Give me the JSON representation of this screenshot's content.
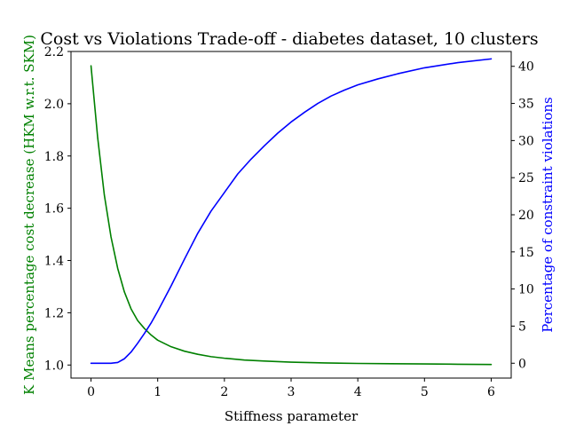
{
  "chart_data": {
    "type": "line",
    "title": "Cost vs Violations Trade-off - diabetes dataset, 10 clusters",
    "xlabel": "Stiffness parameter",
    "ylabel_left": "K Means percentage cost decrease (HKM w.r.t. SKM)",
    "ylabel_right": "Percentage of constraint violations",
    "xlim": [
      -0.3,
      6.3
    ],
    "ylim_left": [
      0.95,
      2.2
    ],
    "ylim_right": [
      -2.0,
      42.0
    ],
    "x_ticks": [
      "0",
      "1",
      "2",
      "3",
      "4",
      "5",
      "6"
    ],
    "y_left_ticks": [
      "1.0",
      "1.2",
      "1.4",
      "1.6",
      "1.8",
      "2.0",
      "2.2"
    ],
    "y_right_ticks": [
      "0",
      "5",
      "10",
      "15",
      "20",
      "25",
      "30",
      "35",
      "40"
    ],
    "grid": false,
    "colors": {
      "left_axis": "#008000",
      "right_axis": "#0000ff"
    },
    "series": [
      {
        "axis": "left",
        "color": "#008000",
        "x": [
          0.0,
          0.1,
          0.2,
          0.3,
          0.4,
          0.5,
          0.6,
          0.7,
          0.8,
          0.9,
          1.0,
          1.2,
          1.4,
          1.6,
          1.8,
          2.0,
          2.3,
          2.6,
          3.0,
          3.5,
          4.0,
          4.5,
          5.0,
          5.5,
          6.0
        ],
        "values": [
          2.145,
          1.87,
          1.65,
          1.49,
          1.37,
          1.28,
          1.215,
          1.17,
          1.14,
          1.115,
          1.095,
          1.07,
          1.053,
          1.041,
          1.032,
          1.026,
          1.019,
          1.015,
          1.011,
          1.008,
          1.006,
          1.005,
          1.004,
          1.003,
          1.002
        ]
      },
      {
        "axis": "right",
        "color": "#0000ff",
        "x": [
          0.0,
          0.1,
          0.2,
          0.3,
          0.4,
          0.5,
          0.6,
          0.7,
          0.8,
          0.9,
          1.0,
          1.2,
          1.4,
          1.6,
          1.8,
          2.0,
          2.2,
          2.4,
          2.6,
          2.8,
          3.0,
          3.2,
          3.4,
          3.6,
          3.8,
          4.0,
          4.3,
          4.6,
          5.0,
          5.5,
          6.0
        ],
        "values": [
          0.0,
          0.0,
          0.0,
          0.0,
          0.1,
          0.6,
          1.5,
          2.7,
          4.0,
          5.4,
          7.0,
          10.4,
          14.0,
          17.5,
          20.5,
          23.0,
          25.5,
          27.5,
          29.3,
          31.0,
          32.5,
          33.8,
          35.0,
          36.0,
          36.8,
          37.5,
          38.3,
          39.0,
          39.8,
          40.5,
          41.0
        ]
      }
    ]
  }
}
